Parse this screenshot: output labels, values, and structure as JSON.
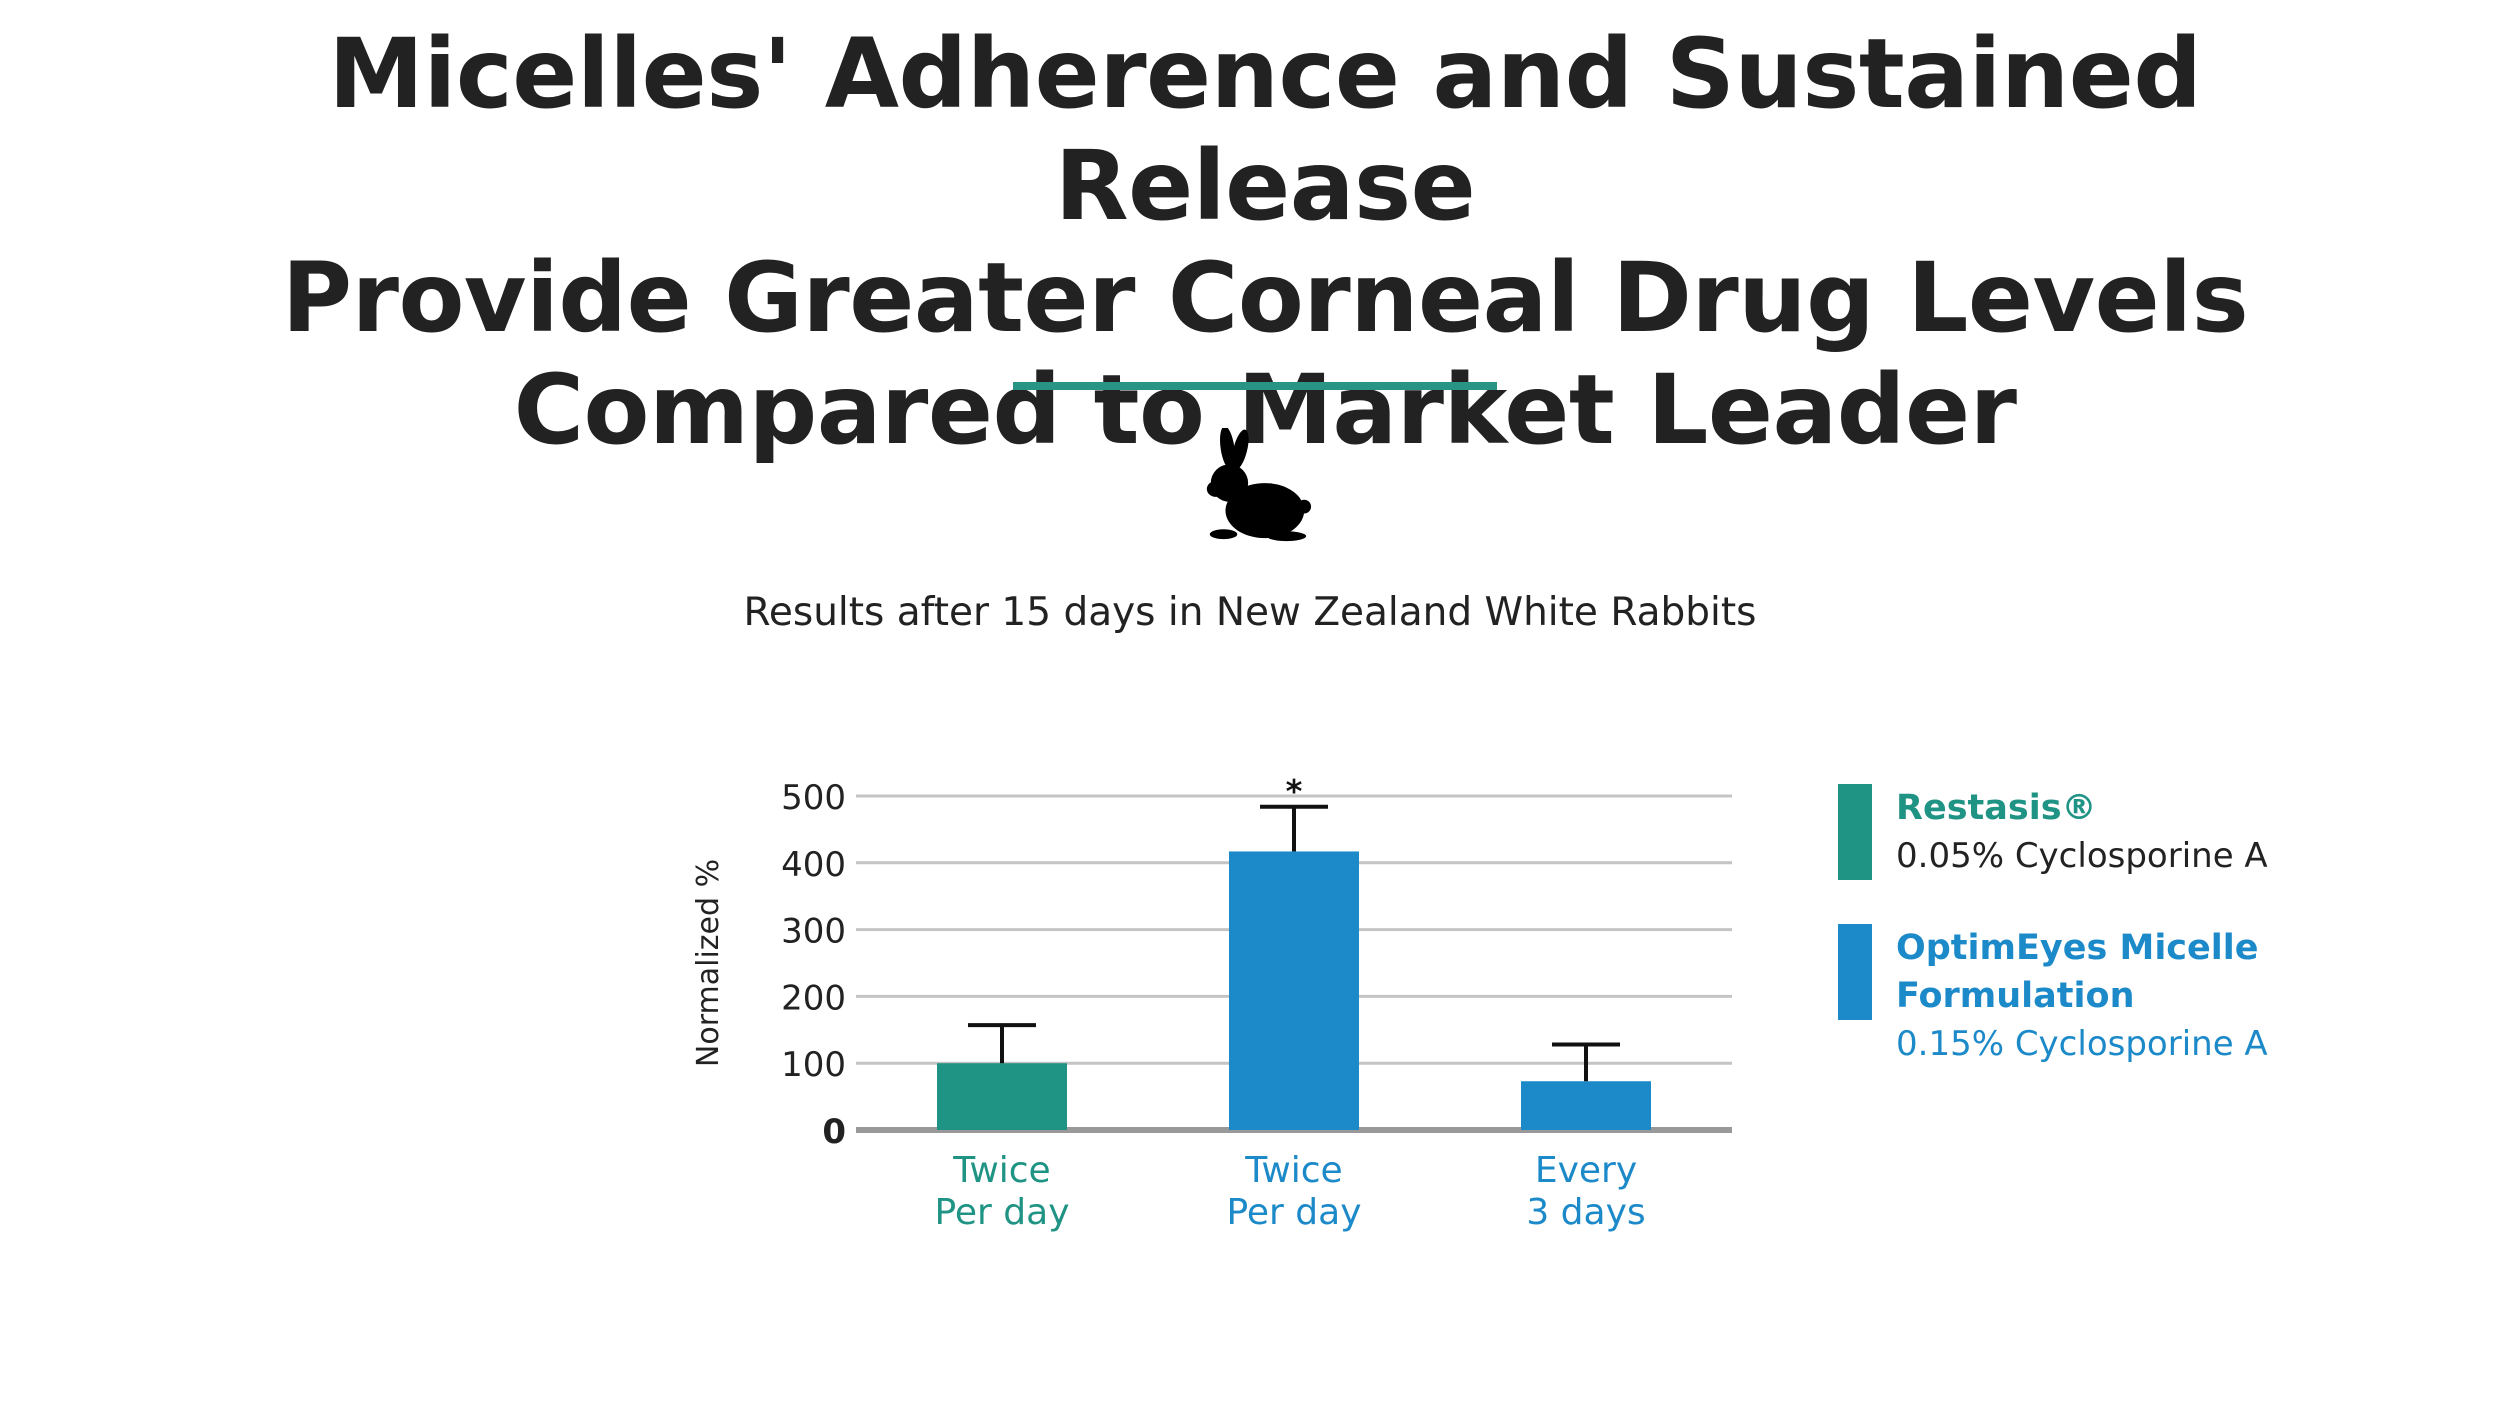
{
  "page": {
    "title_lines": [
      "Micelles' Adherence and Sustained Release",
      "Provide Greater Corneal Drug Levels",
      "Compared to Market Leader"
    ],
    "subtitle": "Results after 15 days in New Zealand White Rabbits",
    "icon": "rabbit-icon",
    "accent_color": "#2a9484"
  },
  "legend": [
    {
      "name": "Restasis®",
      "description": "0.05% Cyclosporine A",
      "color": "#1f9384",
      "text_color": "#1f9384",
      "desc_color": "#222222"
    },
    {
      "name": "OptimEyes Micelle Formulation",
      "description": "0.15% Cyclosporine A",
      "color": "#1c89c9",
      "text_color": "#1c89c9",
      "desc_color": "#1c89c9"
    }
  ],
  "chart_data": {
    "type": "bar",
    "ylabel": "Normalized %",
    "ylim": [
      0,
      500
    ],
    "yticks": [
      "0",
      "100",
      "200",
      "300",
      "400",
      "500"
    ],
    "grid": true,
    "categories": [
      {
        "line1": "Twice",
        "line2": "Per day"
      },
      {
        "line1": "Twice",
        "line2": "Per day"
      },
      {
        "line1": "Every",
        "line2": "3 days"
      }
    ],
    "bars": [
      {
        "series": "Restasis®",
        "value": 100,
        "error_upper": 157,
        "color": "#1f9384",
        "label_color": "#1f9384",
        "annotation": ""
      },
      {
        "series": "OptimEyes Micelle Formulation",
        "value": 417,
        "error_upper": 484,
        "color": "#1c89c9",
        "label_color": "#1c89c9",
        "annotation": "*"
      },
      {
        "series": "OptimEyes Micelle Formulation",
        "value": 73,
        "error_upper": 128,
        "color": "#1c89c9",
        "label_color": "#1c89c9",
        "annotation": ""
      }
    ]
  }
}
